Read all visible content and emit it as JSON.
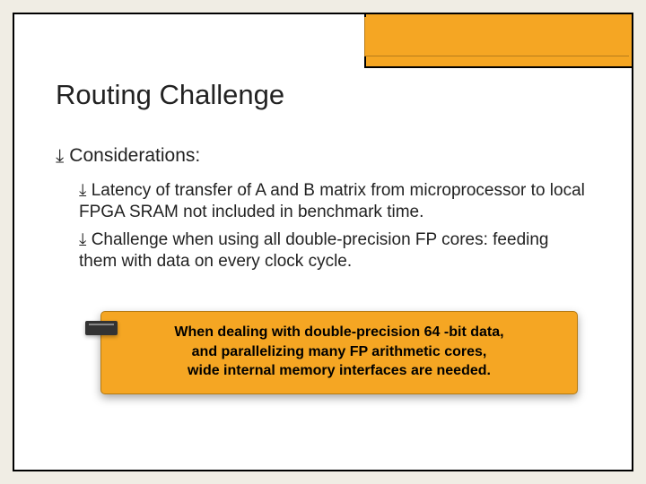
{
  "colors": {
    "page_bg": "#f0ede4",
    "frame_bg": "#ffffff",
    "frame_border": "#000000",
    "accent": "#f5a623",
    "accent_border": "#b47a12",
    "text": "#222222",
    "callout_text": "#000000"
  },
  "title": "Routing Challenge",
  "level1": {
    "bullet": "⤓",
    "text": "Considerations:"
  },
  "level2": [
    {
      "bullet": "⤓",
      "text": "Latency of transfer of A and B matrix from microprocessor to local FPGA SRAM not included in benchmark time."
    },
    {
      "bullet": "⤓",
      "text": "Challenge when using all double-precision FP cores: feeding them with data on every clock cycle."
    }
  ],
  "callout": {
    "line1": "When dealing with double-precision 64 -bit data,",
    "line2": "and parallelizing many FP arithmetic cores,",
    "line3": "wide internal memory interfaces are needed."
  }
}
